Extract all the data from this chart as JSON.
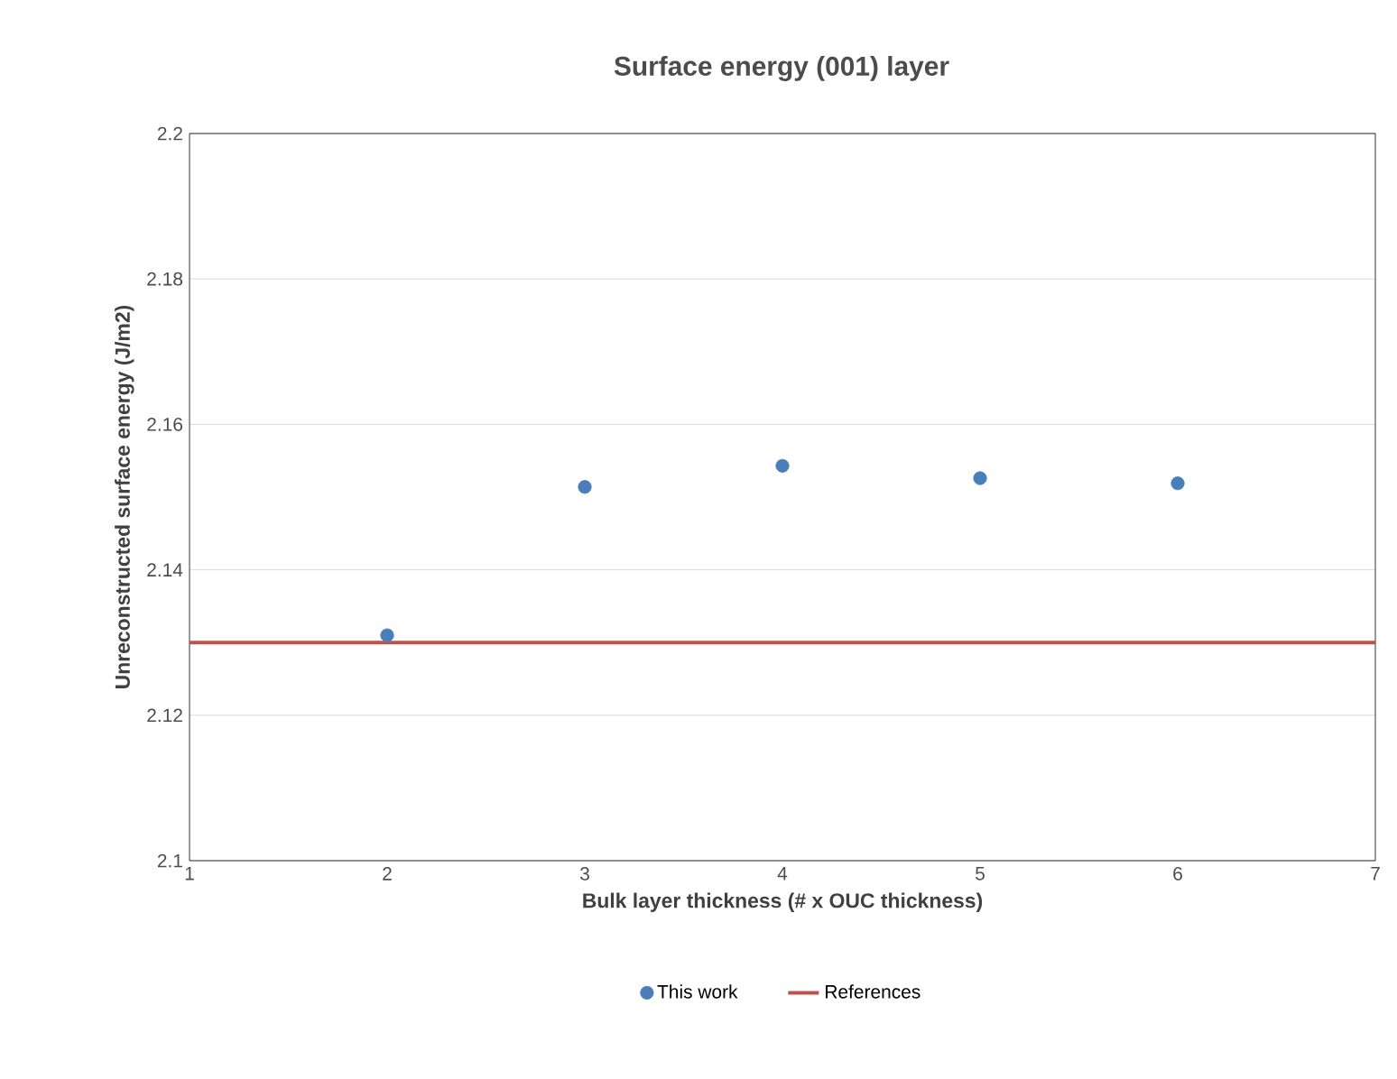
{
  "chart_data": {
    "type": "scatter",
    "title": "Surface energy (001) layer",
    "xlabel": "Bulk layer thickness (# x OUC thickness)",
    "ylabel": "Unreconstructed surface energy (J/m2)",
    "series": [
      {
        "name": "This work",
        "color": "#4a7ebb",
        "marker": "circle",
        "x": [
          2,
          3,
          4,
          5,
          6
        ],
        "values": [
          2.131,
          2.1514,
          2.1543,
          2.1526,
          2.1519
        ]
      },
      {
        "name": "References",
        "type": "line",
        "color": "#c0504d",
        "marker": "none",
        "x": [
          1,
          7
        ],
        "values": [
          2.13,
          2.13
        ]
      }
    ],
    "xlim": [
      1,
      7
    ],
    "xticks": [
      1,
      2,
      3,
      4,
      5,
      6,
      7
    ],
    "ylim": [
      2.1,
      2.2
    ],
    "yticks": [
      2.1,
      2.12,
      2.14,
      2.16,
      2.18,
      2.2
    ],
    "grid": "y",
    "legend": "bottom"
  }
}
